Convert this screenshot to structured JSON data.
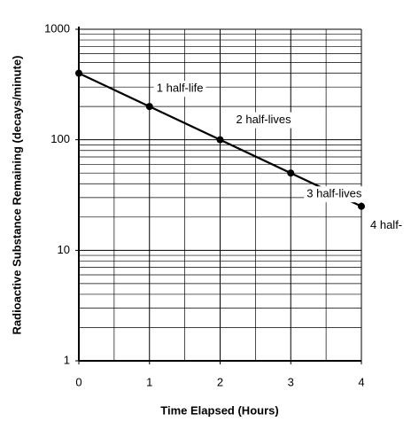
{
  "chart_data": {
    "type": "line",
    "x_label": "Time Elapsed (Hours)",
    "y_label": "Radioactive Substance Remaining (decays/minute)",
    "x": [
      0,
      1,
      2,
      3,
      4
    ],
    "series": [
      {
        "name": "Radioactive substance",
        "color": "#000000",
        "values": [
          400,
          200,
          100,
          50,
          25
        ]
      }
    ],
    "annotations": [
      "1 half-life",
      "2 half-lives",
      "3 half-lives",
      "4 half-"
    ],
    "xlim": [
      0,
      4
    ],
    "xticks": [
      0,
      1,
      2,
      3,
      4
    ],
    "minor_xticks": [
      0.5,
      1.5,
      2.5,
      3.5
    ],
    "ylim": [
      1,
      1000
    ],
    "yticks": [
      1,
      10,
      100,
      1000
    ],
    "minor_yticks": [
      2,
      3,
      4,
      5,
      6,
      7,
      8,
      9,
      20,
      30,
      40,
      50,
      60,
      70,
      80,
      90,
      200,
      300,
      400,
      500,
      600,
      700,
      800,
      900
    ],
    "log_y": true,
    "grid": true
  }
}
